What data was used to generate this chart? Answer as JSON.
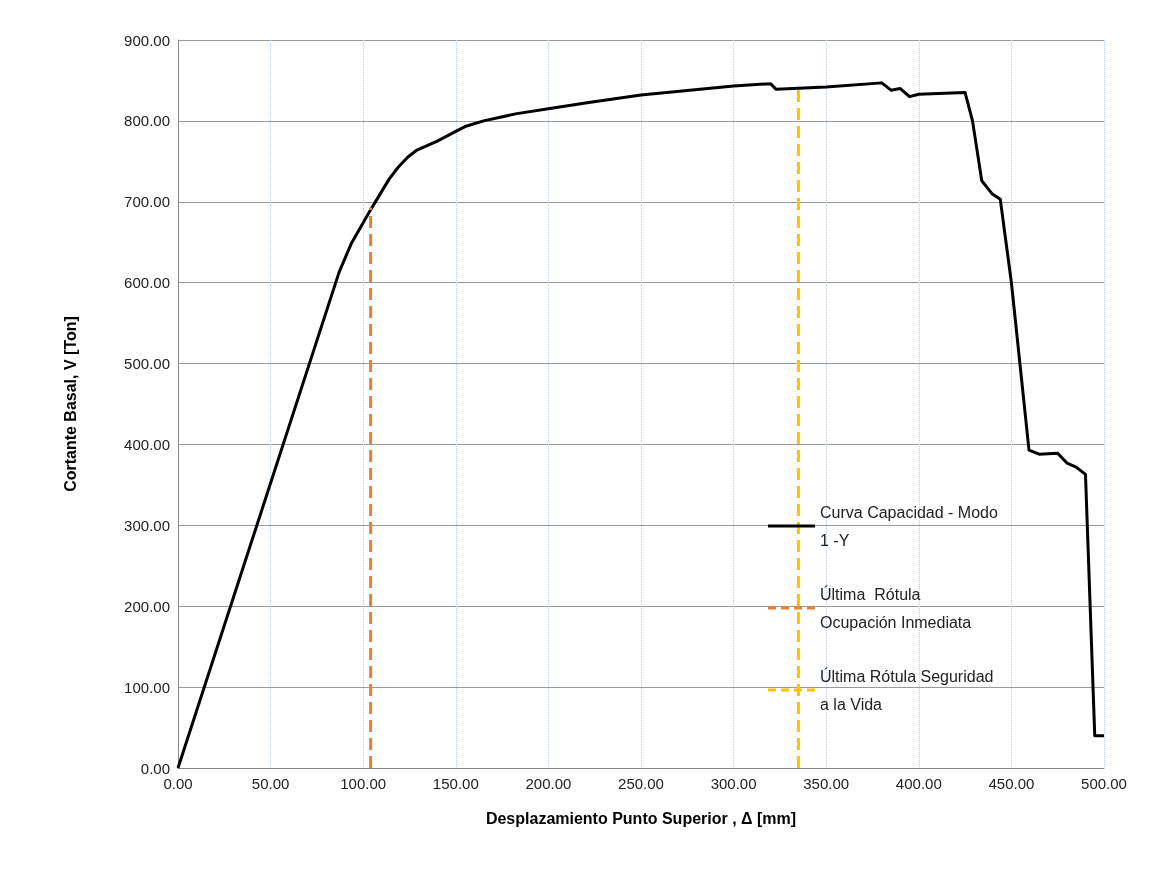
{
  "chart_data": {
    "type": "line",
    "xlabel": "Desplazamiento Punto Superior , Δ [mm]",
    "ylabel": "Cortante Basal, V [Ton]",
    "xlim": [
      0,
      500
    ],
    "ylim": [
      0,
      900
    ],
    "xticks": [
      {
        "value": 0,
        "label": "0.00"
      },
      {
        "value": 50,
        "label": "50.00"
      },
      {
        "value": 100,
        "label": "100.00"
      },
      {
        "value": 150,
        "label": "150.00"
      },
      {
        "value": 200,
        "label": "200.00"
      },
      {
        "value": 250,
        "label": "250.00"
      },
      {
        "value": 300,
        "label": "300.00"
      },
      {
        "value": 350,
        "label": "350.00"
      },
      {
        "value": 400,
        "label": "400.00"
      },
      {
        "value": 450,
        "label": "450.00"
      },
      {
        "value": 500,
        "label": "500.00"
      }
    ],
    "yticks": [
      {
        "value": 0,
        "label": "0.00"
      },
      {
        "value": 100,
        "label": "100.00"
      },
      {
        "value": 200,
        "label": "200.00"
      },
      {
        "value": 300,
        "label": "300.00"
      },
      {
        "value": 400,
        "label": "400.00"
      },
      {
        "value": 500,
        "label": "500.00"
      },
      {
        "value": 600,
        "label": "600.00"
      },
      {
        "value": 700,
        "label": "700.00"
      },
      {
        "value": 800,
        "label": "800.00"
      },
      {
        "value": 900,
        "label": "900.00"
      }
    ],
    "grid": true,
    "legend": "right",
    "marker": "none",
    "series": [
      {
        "name": "Curva Capacidad - Modo 1 -Y",
        "color": "#000000",
        "line_style": "solid",
        "x": [
          0,
          87,
          93.5,
          104,
          114,
          119,
          124,
          129,
          140,
          150,
          155,
          165,
          183,
          200,
          220,
          250,
          300,
          320,
          323,
          350,
          380,
          385,
          390,
          395,
          400,
          425,
          429,
          434,
          439.5,
          444,
          450,
          459.5,
          465,
          475,
          480,
          485,
          490,
          495,
          500
        ],
        "values": [
          0,
          613,
          648,
          690,
          728,
          743,
          755,
          764,
          775,
          787,
          793,
          800,
          809,
          815,
          822,
          832,
          843,
          846,
          839,
          842,
          847,
          838,
          840,
          830,
          833,
          835,
          800,
          726,
          710,
          703,
          600,
          393,
          388,
          389,
          377,
          372,
          363,
          40,
          40
        ]
      },
      {
        "name": "Última  Rótula Ocupación Inmediata",
        "color": "#ed7d31",
        "line_style": "dashed",
        "x": [
          104,
          104
        ],
        "values": [
          0,
          693
        ]
      },
      {
        "name": "Última Rótula Seguridad a la Vida",
        "color": "#ffc000",
        "line_style": "dashed",
        "x": [
          335,
          335
        ],
        "values": [
          0,
          840
        ]
      }
    ]
  }
}
